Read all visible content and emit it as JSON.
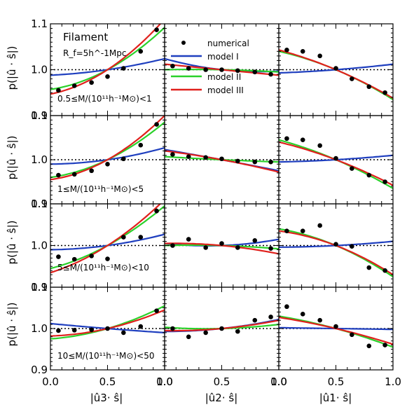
{
  "chart_data": {
    "type": "scatter",
    "title": "Filament",
    "smoothing_label": "R_f=5h^-1Mpc",
    "ylabel": "p(|û · ŝ|)",
    "xlabels": [
      "|û3· ŝ|",
      "|û2· ŝ|",
      "|û1· ŝ|"
    ],
    "xlim": [
      0,
      1
    ],
    "ylim": [
      0.9,
      1.1
    ],
    "x_ticks": [
      "0.0",
      "0.5",
      "1.0"
    ],
    "y_ticks": [
      "0.9",
      "1.0",
      "1.1"
    ],
    "reference_line": 1.0,
    "legend": {
      "position": "top-center",
      "entries": [
        {
          "label": "numerical",
          "color": "#000000",
          "kind": "point"
        },
        {
          "label": "model I",
          "color": "#1f3fbf",
          "kind": "line"
        },
        {
          "label": "model II",
          "color": "#2ad12a",
          "kind": "line"
        },
        {
          "label": "model III",
          "color": "#e0201c",
          "kind": "line"
        }
      ]
    },
    "colors": {
      "numerical": "#000000",
      "model_I": "#1f3fbf",
      "model_II": "#2ad12a",
      "model_III": "#e0201c"
    },
    "x": [
      0.07,
      0.21,
      0.36,
      0.5,
      0.64,
      0.79,
      0.93
    ],
    "mass_bins": [
      {
        "label": "0.5≤M/(10¹¹h⁻¹M⊙)<1",
        "panels": [
          {
            "numerical": [
              0.955,
              0.965,
              0.972,
              0.985,
              1.003,
              1.04,
              1.087
            ],
            "errors": [
              0.003,
              0.003,
              0.003,
              0.003,
              0.003,
              0.004,
              0.005
            ],
            "model_I": [
              0.988,
              1.024
            ],
            "model_II": [
              0.957,
              1.092
            ],
            "model_III": [
              0.947,
              1.11
            ]
          },
          {
            "numerical": [
              1.008,
              1.003,
              1.0,
              1.0,
              0.998,
              0.995,
              0.99
            ],
            "errors": [
              0.003,
              0.003,
              0.003,
              0.003,
              0.003,
              0.003,
              0.003
            ],
            "model_I": [
              1.024,
              0.997
            ],
            "model_II": [
              1.0,
              0.995
            ],
            "model_III": [
              1.012,
              0.988
            ]
          },
          {
            "numerical": [
              1.043,
              1.04,
              1.03,
              1.003,
              0.98,
              0.963,
              0.95
            ],
            "errors": [
              0.003,
              0.003,
              0.003,
              0.003,
              0.003,
              0.003,
              0.003
            ],
            "model_I": [
              0.993,
              1.012
            ],
            "model_II": [
              1.04,
              0.935
            ],
            "model_III": [
              1.043,
              0.938
            ]
          }
        ]
      },
      {
        "label": "1≤M/(10¹¹h⁻¹M⊙)<5",
        "panels": [
          {
            "numerical": [
              0.965,
              0.967,
              0.975,
              0.99,
              1.002,
              1.033,
              1.08
            ],
            "errors": [
              0.002,
              0.002,
              0.002,
              0.002,
              0.002,
              0.003,
              0.004
            ],
            "model_I": [
              0.99,
              1.027
            ],
            "model_II": [
              0.96,
              1.085
            ],
            "model_III": [
              0.955,
              1.1
            ]
          },
          {
            "numerical": [
              1.012,
              1.007,
              1.005,
              1.002,
              0.997,
              0.995,
              0.995
            ],
            "errors": [
              0.003,
              0.003,
              0.003,
              0.003,
              0.003,
              0.003,
              0.003
            ],
            "model_I": [
              1.023,
              0.975
            ],
            "model_II": [
              1.007,
              0.995
            ],
            "model_III": [
              1.02,
              0.972
            ]
          },
          {
            "numerical": [
              1.048,
              1.045,
              1.032,
              1.003,
              0.98,
              0.965,
              0.95
            ],
            "errors": [
              0.002,
              0.002,
              0.002,
              0.002,
              0.003,
              0.003,
              0.003
            ],
            "model_I": [
              0.995,
              1.01
            ],
            "model_II": [
              1.045,
              0.935
            ],
            "model_III": [
              1.04,
              0.942
            ]
          }
        ]
      },
      {
        "label": "5≤M/(10¹¹h⁻¹M⊙)<10",
        "panels": [
          {
            "numerical": [
              0.973,
              0.967,
              0.975,
              0.968,
              1.02,
              1.02,
              1.083
            ],
            "errors": [
              0.005,
              0.005,
              0.005,
              0.005,
              0.005,
              0.005,
              0.006
            ],
            "model_I": [
              0.99,
              1.027
            ],
            "model_II": [
              0.945,
              1.095
            ],
            "model_III": [
              0.935,
              1.11
            ]
          },
          {
            "numerical": [
              1.0,
              1.015,
              0.995,
              1.005,
              0.995,
              1.012,
              0.993
            ],
            "errors": [
              0.005,
              0.005,
              0.005,
              0.005,
              0.005,
              0.005,
              0.005
            ],
            "model_I": [
              1.005,
              1.015
            ],
            "model_II": [
              1.0,
              0.992
            ],
            "model_III": [
              1.005,
              0.98
            ]
          },
          {
            "numerical": [
              1.035,
              1.035,
              1.048,
              1.003,
              0.998,
              0.947,
              0.94
            ],
            "errors": [
              0.005,
              0.005,
              0.005,
              0.005,
              0.005,
              0.005,
              0.005
            ],
            "model_I": [
              0.996,
              1.01
            ],
            "model_II": [
              1.04,
              0.925
            ],
            "model_III": [
              1.035,
              0.93
            ]
          }
        ]
      },
      {
        "label": "10≤M/(10¹¹h⁻¹M⊙)<50",
        "panels": [
          {
            "numerical": [
              0.995,
              0.996,
              0.997,
              1.0,
              0.99,
              1.005,
              1.043
            ],
            "errors": [
              0.005,
              0.005,
              0.005,
              0.005,
              0.005,
              0.005,
              0.005
            ],
            "model_I": [
              1.012,
              0.99
            ],
            "model_II": [
              0.975,
              1.055
            ],
            "model_III": [
              0.982,
              1.045
            ]
          },
          {
            "numerical": [
              1.0,
              0.98,
              0.99,
              1.0,
              0.993,
              1.02,
              1.028
            ],
            "errors": [
              0.005,
              0.005,
              0.005,
              0.005,
              0.005,
              0.005,
              0.005
            ],
            "model_I": [
              0.993,
              1.022
            ],
            "model_II": [
              1.003,
              1.01
            ],
            "model_III": [
              0.995,
              1.02
            ]
          },
          {
            "numerical": [
              1.053,
              1.035,
              1.02,
              1.005,
              0.985,
              0.958,
              0.96
            ],
            "errors": [
              0.005,
              0.005,
              0.005,
              0.005,
              0.005,
              0.005,
              0.005
            ],
            "model_I": [
              1.002,
              0.998
            ],
            "model_II": [
              1.03,
              0.955
            ],
            "model_III": [
              1.027,
              0.962
            ]
          }
        ]
      }
    ]
  }
}
